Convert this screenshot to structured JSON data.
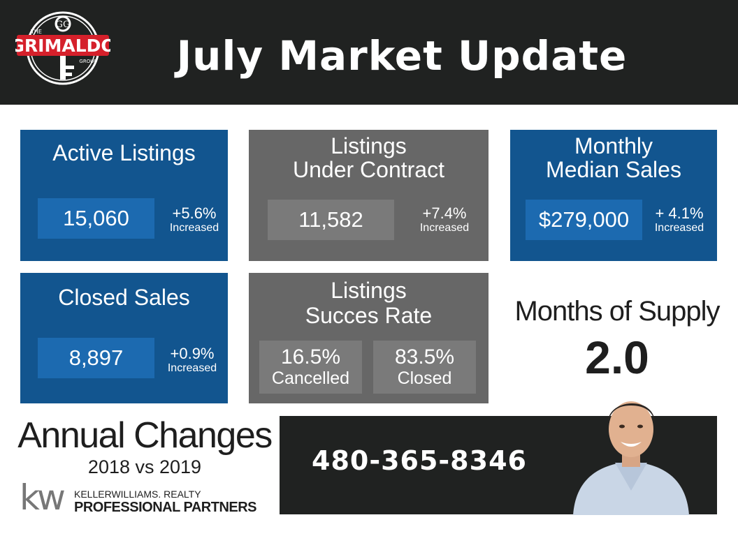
{
  "header": {
    "title": "July Market Update",
    "logo": {
      "top_text": "THE",
      "name": "GRIMALDO",
      "bottom_text": "GROUP",
      "monogram": "GG"
    }
  },
  "cards": {
    "active": {
      "title": "Active Listings",
      "value": "15,060",
      "change": "+5.6%",
      "change_label": "Increased"
    },
    "contract": {
      "title_line1": "Listings",
      "title_line2": "Under Contract",
      "value": "11,582",
      "change": "+7.4%",
      "change_label": "Increased"
    },
    "median": {
      "title_line1": "Monthly",
      "title_line2": "Median Sales",
      "value": "$279,000",
      "change": "+ 4.1%",
      "change_label": "Increased"
    },
    "closed": {
      "title": "Closed Sales",
      "value": "8,897",
      "change": "+0.9%",
      "change_label": "Increased"
    },
    "success": {
      "title_line1": "Listings",
      "title_line2": "Succes Rate",
      "cancelled_value": "16.5%",
      "cancelled_label": "Cancelled",
      "closed_value": "83.5%",
      "closed_label": "Closed"
    }
  },
  "supply": {
    "label": "Months of Supply",
    "value": "2.0"
  },
  "annual": {
    "title": "Annual Changes",
    "subtitle": "2018 vs 2019"
  },
  "brokerage": {
    "mark": "kw",
    "name": "KELLERWILLIAMS. REALTY",
    "office": "PROFESSIONAL PARTNERS"
  },
  "contact": {
    "phone": "480-365-8346"
  },
  "colors": {
    "header_bg": "#202221",
    "card_blue": "#12558f",
    "card_blue_box": "#1c6ab0",
    "card_gray": "#676767",
    "card_gray_box": "#7a7a7a",
    "logo_red": "#d5202b",
    "kw_gray": "#777777"
  },
  "icons": {
    "logo": "grimaldo-key-logo",
    "kw": "kw-logo",
    "agent": "agent-photo"
  }
}
